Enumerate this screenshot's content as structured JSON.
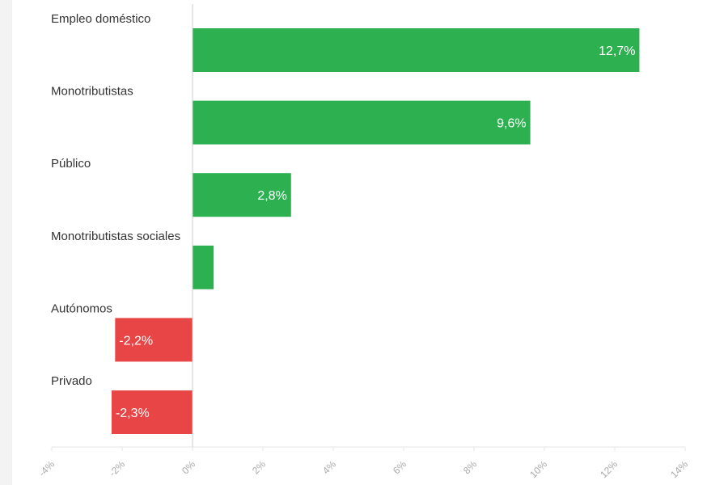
{
  "chart_data": {
    "type": "bar",
    "orientation": "horizontal",
    "categories": [
      "Empleo doméstico",
      "Monotributistas",
      "Público",
      "Monotributistas sociales",
      "Autónomos",
      "Privado"
    ],
    "values": [
      12.7,
      9.6,
      2.8,
      0.6,
      -2.2,
      -2.3
    ],
    "labels": [
      "12,7%",
      "9,6%",
      "2,8%",
      "",
      "-2,2%",
      "-2,3%"
    ],
    "xlim": [
      -4,
      14
    ],
    "xticks": [
      -4,
      -2,
      0,
      2,
      4,
      6,
      8,
      10,
      12,
      14
    ],
    "xtick_labels": [
      "-4%",
      "-2%",
      "0%",
      "2%",
      "4%",
      "6%",
      "8%",
      "10%",
      "12%",
      "14%"
    ],
    "colors": {
      "positive": "#2db050",
      "negative": "#e84646"
    },
    "title": "",
    "xlabel": "",
    "ylabel": "",
    "grid": false
  }
}
